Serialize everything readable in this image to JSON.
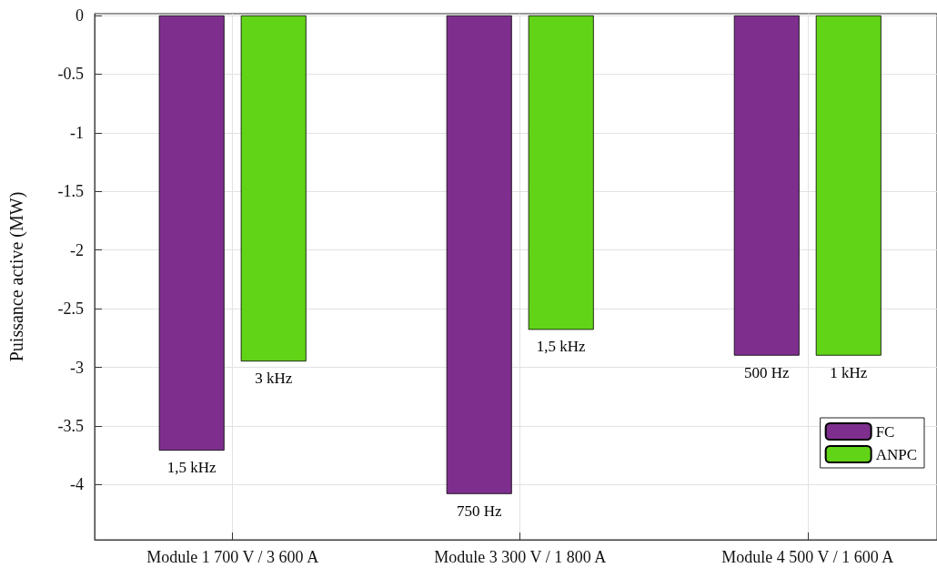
{
  "chart_data": {
    "type": "bar",
    "ylabel": "Puissance active (MW)",
    "categories": [
      "Module 1 700 V / 3 600 A",
      "Module 3 300 V / 1 800 A",
      "Module 4 500 V / 1 600 A"
    ],
    "series": [
      {
        "name": "FC",
        "color": "#7e2f8e",
        "values": [
          -3.71,
          -4.08,
          -2.9
        ]
      },
      {
        "name": "ANPC",
        "color": "#62d417",
        "values": [
          -2.95,
          -2.68,
          -2.9
        ]
      }
    ],
    "annotations": [
      "1,5 kHz",
      "3 kHz",
      "750 Hz",
      "1,5 kHz",
      "500 Hz",
      "1 kHz"
    ],
    "ylim": [
      -4.47,
      0.015
    ],
    "yticks": [
      0,
      -0.5,
      -1,
      -1.5,
      -2,
      -2.5,
      -3,
      -3.5,
      -4
    ],
    "grid": true,
    "legend": "bottom right"
  }
}
